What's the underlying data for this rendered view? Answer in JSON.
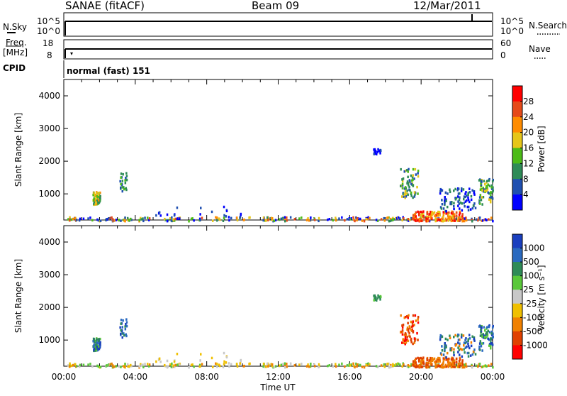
{
  "header": {
    "radar": "SANAE (fitACF)",
    "beam": "Beam 09",
    "date": "12/Mar/2011"
  },
  "top_panels": {
    "nsky_label": "N.Sky",
    "nsky_ticks": [
      "10^5",
      "10^0"
    ],
    "nsearch_label": "N.Search",
    "nsearch_ticks": [
      "10^5",
      "10^0"
    ],
    "freq_label_line1": "Freq.",
    "freq_label_line2": "[MHz]",
    "freq_ticks": [
      "18",
      "8"
    ],
    "nave_label": "Nave",
    "nave_ticks": [
      "60",
      "0"
    ],
    "cpid_label": "CPID",
    "cpid_value": "normal (fast) 151"
  },
  "chart_data": [
    {
      "type": "heatmap",
      "name": "power",
      "ylabel": "Slant Range [km]",
      "ylim": [
        200,
        4500
      ],
      "yticks": [
        1000,
        2000,
        3000,
        4000
      ],
      "xlim": [
        0,
        24
      ],
      "colorbar_label": "Power [dB]",
      "colorbar_ticks": [
        "4",
        "8",
        "12",
        "16",
        "20",
        "24",
        "28"
      ],
      "colors": [
        "#0000ff",
        "#1f4fb0",
        "#2e8b57",
        "#4cbb17",
        "#e6c619",
        "#ff8c00",
        "#e64a19",
        "#ff0000"
      ]
    },
    {
      "type": "heatmap",
      "name": "velocity",
      "ylabel": "Slant Range [km]",
      "ylim": [
        200,
        4500
      ],
      "yticks": [
        1000,
        2000,
        3000,
        4000
      ],
      "xlim": [
        0,
        24
      ],
      "colorbar_label": "Velocity [m s⁻¹]",
      "colorbar_ticks": [
        "1000",
        "500",
        "100",
        "25",
        "-25",
        "-100",
        "-500",
        "-1000"
      ],
      "colors": [
        "#1a3fbf",
        "#2a6ac0",
        "#2e8b57",
        "#5ac83a",
        "#c8c8c8",
        "#f0c000",
        "#f08000",
        "#e04000",
        "#ff0000"
      ]
    }
  ],
  "xaxis": {
    "label": "Time UT",
    "ticks": [
      "00:00",
      "04:00",
      "08:00",
      "12:00",
      "16:00",
      "20:00",
      "00:00"
    ]
  }
}
